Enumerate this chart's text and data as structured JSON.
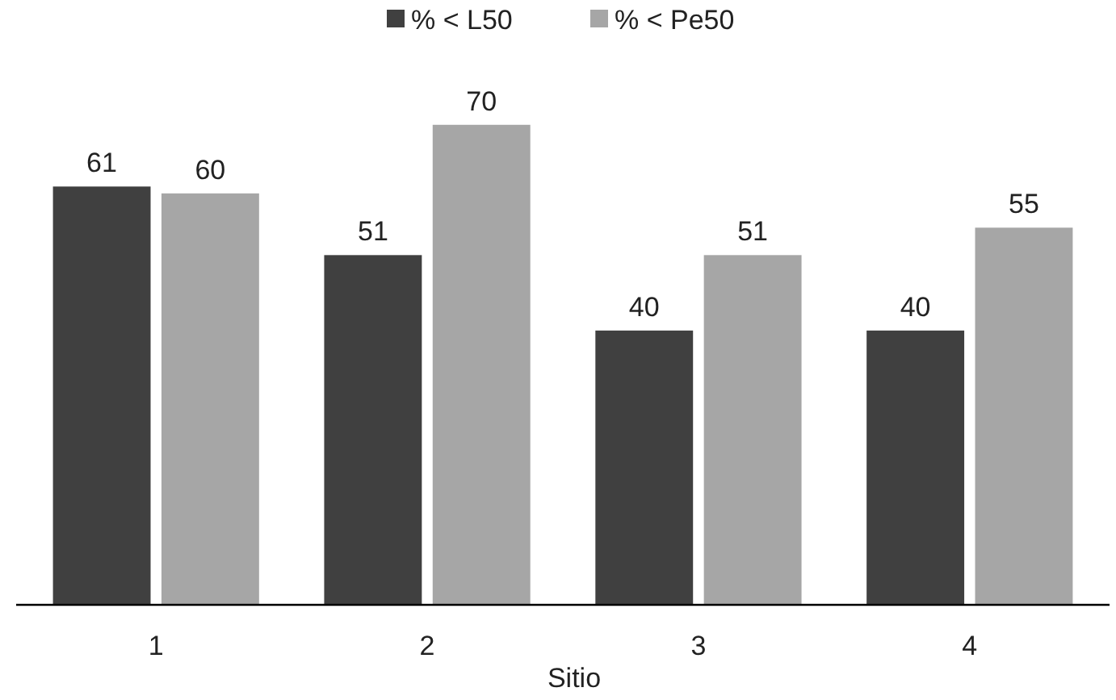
{
  "chart_data": {
    "type": "bar",
    "xlabel": "Sitio",
    "categories": [
      "1",
      "2",
      "3",
      "4"
    ],
    "series": [
      {
        "name": "% < L50",
        "color": "#404040",
        "values": [
          61,
          51,
          40,
          40
        ]
      },
      {
        "name": "% < Pe50",
        "color": "#a6a6a6",
        "values": [
          60,
          70,
          51,
          55
        ]
      }
    ],
    "data_labels": true,
    "legend": "top"
  }
}
